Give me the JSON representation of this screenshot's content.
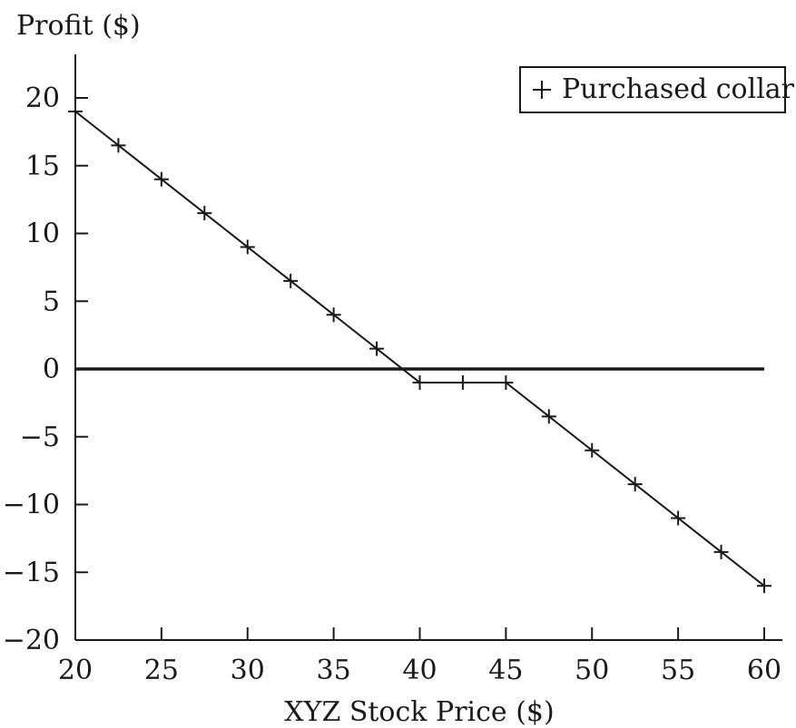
{
  "chart_data": {
    "type": "line",
    "ylabel": "Profit ($)",
    "xlabel": "XYZ Stock Price ($)",
    "xlim": [
      20,
      60
    ],
    "ylim": [
      -20,
      20
    ],
    "x_ticks": [
      20,
      25,
      30,
      35,
      40,
      45,
      50,
      55,
      60
    ],
    "y_ticks": [
      -20,
      -15,
      -10,
      -5,
      0,
      5,
      10,
      15,
      20
    ],
    "x_tick_labels": [
      "20",
      "25",
      "30",
      "35",
      "40",
      "45",
      "50",
      "55",
      "60"
    ],
    "y_tick_labels": [
      "−20",
      "−15",
      "−10",
      "−5",
      "0",
      "5",
      "10",
      "15",
      "20"
    ],
    "zero_line": true,
    "grid": false,
    "legend": {
      "position": "top-right",
      "marker": "+"
    },
    "series": [
      {
        "name": "Purchased collar",
        "marker": "+",
        "color": "#1a1a1a",
        "x": [
          20,
          22.5,
          25,
          27.5,
          30,
          32.5,
          35,
          37.5,
          40,
          42.5,
          45,
          47.5,
          50,
          52.5,
          55,
          57.5,
          60
        ],
        "y": [
          19,
          16.5,
          14,
          11.5,
          9,
          6.5,
          4,
          1.5,
          -1,
          -1,
          -1,
          -3.5,
          -6,
          -8.5,
          -11,
          -13.5,
          -16
        ]
      }
    ]
  }
}
